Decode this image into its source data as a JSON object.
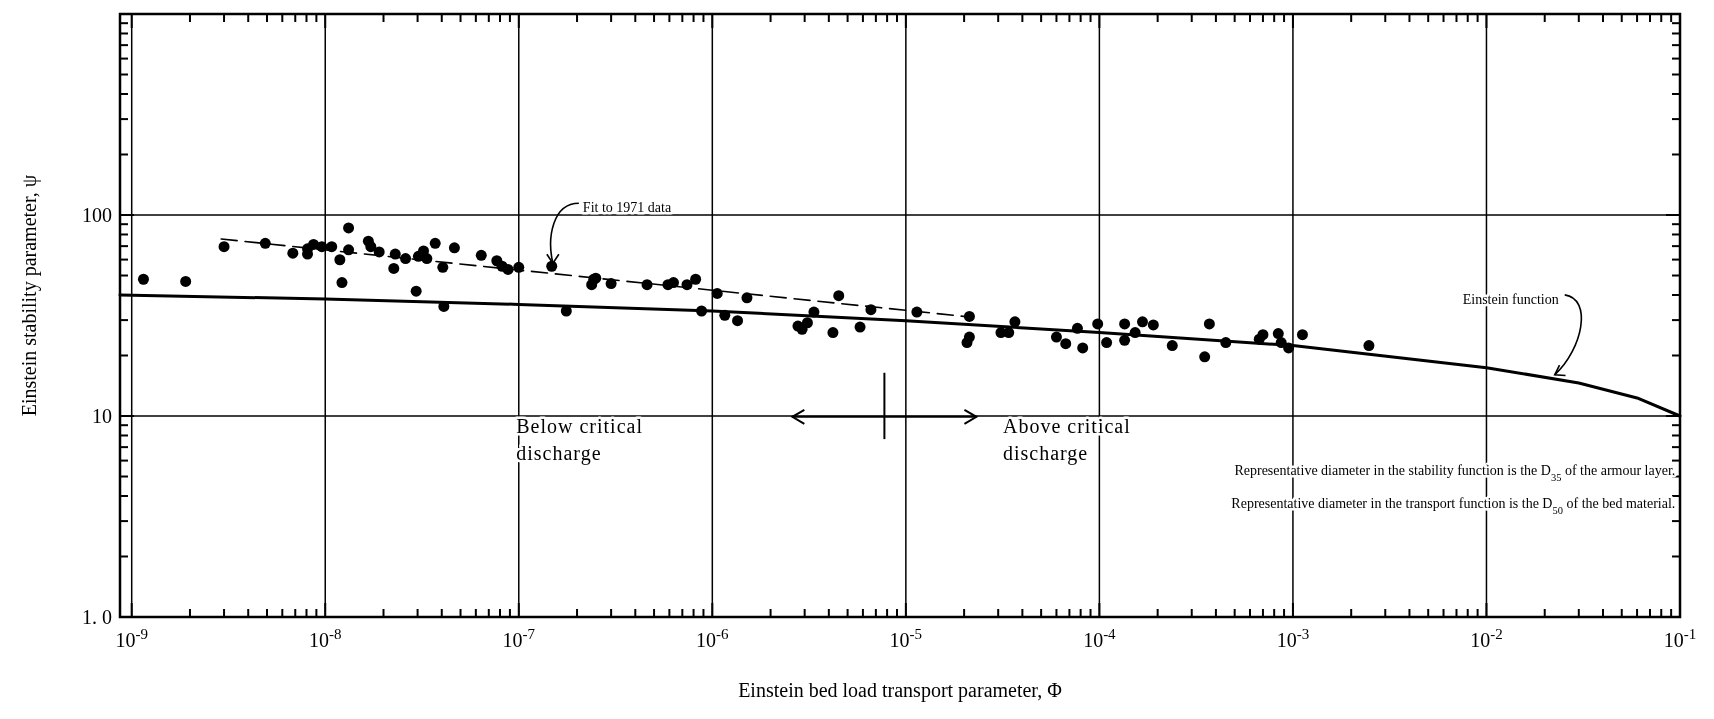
{
  "chart_data": {
    "type": "scatter",
    "xlabel": "Einstein bed load transport parameter, Φ",
    "ylabel": "Einstein stability parameter, ψ",
    "log": "xy",
    "grid": true,
    "xlim": [
      8.7e-10,
      0.1
    ],
    "ylim": [
      1,
      1000
    ],
    "xticks": [
      {
        "value": 1e-09,
        "label": "10$^{-9}$"
      },
      {
        "value": 1e-08,
        "label": "10$^{-8}$"
      },
      {
        "value": 1e-07,
        "label": "10$^{-7}$"
      },
      {
        "value": 1e-06,
        "label": "10$^{-6}$"
      },
      {
        "value": 1e-05,
        "label": "10$^{-5}$"
      },
      {
        "value": 0.0001,
        "label": "10$^{-4}$"
      },
      {
        "value": 0.001,
        "label": "10$^{-3}$"
      },
      {
        "value": 0.01,
        "label": "10$^{-2}$"
      },
      {
        "value": 0.1,
        "label": "10$^{-1}$"
      },
      {
        "value": 2e-09,
        "label": null
      },
      {
        "value": 3e-09,
        "label": null
      },
      {
        "value": 4e-09,
        "label": null
      },
      {
        "value": 5e-09,
        "label": null
      },
      {
        "value": 6e-09,
        "label": null
      },
      {
        "value": 7e-09,
        "label": null
      },
      {
        "value": 8e-09,
        "label": null
      },
      {
        "value": 9e-09,
        "label": null
      },
      {
        "value": 2e-08,
        "label": null
      },
      {
        "value": 3e-08,
        "label": null
      },
      {
        "value": 4e-08,
        "label": null
      },
      {
        "value": 5e-08,
        "label": null
      },
      {
        "value": 6e-08,
        "label": null
      },
      {
        "value": 7e-08,
        "label": null
      },
      {
        "value": 8e-08,
        "label": null
      },
      {
        "value": 9e-08,
        "label": null
      },
      {
        "value": 2e-07,
        "label": null
      },
      {
        "value": 3e-07,
        "label": null
      },
      {
        "value": 4e-07,
        "label": null
      },
      {
        "value": 5e-07,
        "label": null
      },
      {
        "value": 6e-07,
        "label": null
      },
      {
        "value": 7e-07,
        "label": null
      },
      {
        "value": 8e-07,
        "label": null
      },
      {
        "value": 9e-07,
        "label": null
      },
      {
        "value": 2e-06,
        "label": null
      },
      {
        "value": 3e-06,
        "label": null
      },
      {
        "value": 4e-06,
        "label": null
      },
      {
        "value": 5e-06,
        "label": null
      },
      {
        "value": 6e-06,
        "label": null
      },
      {
        "value": 7e-06,
        "label": null
      },
      {
        "value": 8e-06,
        "label": null
      },
      {
        "value": 9e-06,
        "label": null
      },
      {
        "value": 2e-05,
        "label": null
      },
      {
        "value": 3e-05,
        "label": null
      },
      {
        "value": 4e-05,
        "label": null
      },
      {
        "value": 5e-05,
        "label": null
      },
      {
        "value": 6e-05,
        "label": null
      },
      {
        "value": 7e-05,
        "label": null
      },
      {
        "value": 8e-05,
        "label": null
      },
      {
        "value": 9e-05,
        "label": null
      },
      {
        "value": 0.0002,
        "label": null
      },
      {
        "value": 0.0003,
        "label": null
      },
      {
        "value": 0.0004,
        "label": null
      },
      {
        "value": 0.0005,
        "label": null
      },
      {
        "value": 0.0006,
        "label": null
      },
      {
        "value": 0.0007,
        "label": null
      },
      {
        "value": 0.0008,
        "label": null
      },
      {
        "value": 0.0009,
        "label": null
      },
      {
        "value": 0.002,
        "label": null
      },
      {
        "value": 0.003,
        "label": null
      },
      {
        "value": 0.004,
        "label": null
      },
      {
        "value": 0.005,
        "label": null
      },
      {
        "value": 0.006,
        "label": null
      },
      {
        "value": 0.007,
        "label": null
      },
      {
        "value": 0.008,
        "label": null
      },
      {
        "value": 0.009,
        "label": null
      },
      {
        "value": 0.02,
        "label": null
      },
      {
        "value": 0.03,
        "label": null
      },
      {
        "value": 0.04,
        "label": null
      },
      {
        "value": 0.05,
        "label": null
      },
      {
        "value": 0.06,
        "label": null
      },
      {
        "value": 0.07,
        "label": null
      },
      {
        "value": 0.08,
        "label": null
      },
      {
        "value": 0.09,
        "label": null
      }
    ],
    "yticks": [
      {
        "value": 1,
        "label": "1. 0"
      },
      10,
      100,
      {
        "value": 1000,
        "label": null
      },
      {
        "value": 2,
        "label": null
      },
      {
        "value": 3,
        "label": null
      },
      {
        "value": 4,
        "label": null
      },
      {
        "value": 5,
        "label": null
      },
      {
        "value": 6,
        "label": null
      },
      {
        "value": 7,
        "label": null
      },
      {
        "value": 8,
        "label": null
      },
      {
        "value": 9,
        "label": null
      },
      {
        "value": 20,
        "label": null
      },
      {
        "value": 30,
        "label": null
      },
      {
        "value": 40,
        "label": null
      },
      {
        "value": 50,
        "label": null
      },
      {
        "value": 60,
        "label": null
      },
      {
        "value": 70,
        "label": null
      },
      {
        "value": 80,
        "label": null
      },
      {
        "value": 90,
        "label": null
      },
      {
        "value": 200,
        "label": null
      },
      {
        "value": 300,
        "label": null
      },
      {
        "value": 400,
        "label": null
      },
      {
        "value": 500,
        "label": null
      },
      {
        "value": 600,
        "label": null
      },
      {
        "value": 700,
        "label": null
      },
      {
        "value": 800,
        "label": null
      },
      {
        "value": 900,
        "label": null
      }
    ],
    "series": [
      {
        "type": "scatter",
        "color": "#000000",
        "marker": "circle",
        "x": [
          1.15e-09,
          1.9e-09,
          3e-09,
          4.9e-09,
          6.8e-09,
          8.1e-09,
          8.1e-09,
          8.7e-09,
          9.6e-09,
          1.08e-08,
          1.19e-08,
          1.22e-08,
          1.32e-08,
          1.32e-08,
          1.67e-08,
          1.72e-08,
          1.9e-08,
          2.26e-08,
          2.3e-08,
          2.6e-08,
          2.95e-08,
          3.03e-08,
          3.22e-08,
          3.35e-08,
          3.7e-08,
          4.05e-08,
          4.1e-08,
          4.65e-08,
          6.4e-08,
          7.7e-08,
          8.2e-08,
          8.8e-08,
          1e-07,
          1.48e-07,
          1.76e-07,
          2.38e-07,
          2.44e-07,
          2.5e-07,
          3e-07,
          4.6e-07,
          5.9e-07,
          6.3e-07,
          7.4e-07,
          8.2e-07,
          8.8e-07,
          1.06e-06,
          1.16e-06,
          1.35e-06,
          1.51e-06,
          2.77e-06,
          2.91e-06,
          3.1e-06,
          3.35e-06,
          4.2e-06,
          4.5e-06,
          5.8e-06,
          6.6e-06,
          1.14e-05,
          2.07e-05,
          2.13e-05,
          2.13e-05,
          3.1e-05,
          3.4e-05,
          3.66e-05,
          6e-05,
          6.7e-05,
          8.2e-05,
          7.7e-05,
          9.8e-05,
          0.000109,
          0.000135,
          0.000135,
          0.000153,
          0.000167,
          0.00019,
          0.000238,
          0.00035,
          0.00037,
          0.00045,
          0.00067,
          0.0007,
          0.00084,
          0.00087,
          0.00095,
          0.00112,
          0.00247
        ],
        "values": [
          47.9,
          46.7,
          69.6,
          72.3,
          64.6,
          67.9,
          63.9,
          71.4,
          69.6,
          69.6,
          59.9,
          46.1,
          86.2,
          67.1,
          74.1,
          69.6,
          65.5,
          54.2,
          63.9,
          60.7,
          41.8,
          62.3,
          66.2,
          60.7,
          72.3,
          54.9,
          35.1,
          68.7,
          63.0,
          59.2,
          55.6,
          53.6,
          54.9,
          55.6,
          33.3,
          45.0,
          47.9,
          48.5,
          45.6,
          45.0,
          45.0,
          46.1,
          45.0,
          47.9,
          33.3,
          40.7,
          31.7,
          29.8,
          38.7,
          28.0,
          27.0,
          29.1,
          32.9,
          26.0,
          39.7,
          27.7,
          33.8,
          32.9,
          23.2,
          24.7,
          31.3,
          26.0,
          26.0,
          29.4,
          24.7,
          22.9,
          21.8,
          27.3,
          28.7,
          23.2,
          23.8,
          28.7,
          26.0,
          29.4,
          28.4,
          22.4,
          19.7,
          28.7,
          23.2,
          24.1,
          25.4,
          25.7,
          23.2,
          21.8,
          25.4,
          22.4
        ]
      },
      {
        "type": "line",
        "color": "#000000",
        "line_style": "solid",
        "x": [
          8.7e-10,
          1e-08,
          1e-07,
          1e-06,
          1e-05,
          0.0001,
          0.001,
          0.01,
          0.03,
          0.06,
          0.1
        ],
        "values": [
          40,
          38.2,
          35.9,
          33.3,
          29.8,
          26,
          22.4,
          17.4,
          14.6,
          12.3,
          10
        ]
      },
      {
        "type": "line",
        "color": "#000000",
        "line_style": "dashed",
        "x": [
          2.9e-09,
          1e-07,
          2.2e-05
        ],
        "values": [
          76,
          53.2,
          31
        ]
      }
    ],
    "annotations": [
      {
        "text": "Fit to 1971 data",
        "x": 1.5e-07,
        "y": 55
      },
      {
        "text": "Einstein function",
        "x": 0.022,
        "y": 15.3
      },
      "Below critical discharge",
      "Above critical discharge",
      "Representative diameter in the stability function is the D$_{35}$ of the armour layer.",
      "Representative diameter in the transport function is the D$_{50}$ of the bed material."
    ]
  }
}
